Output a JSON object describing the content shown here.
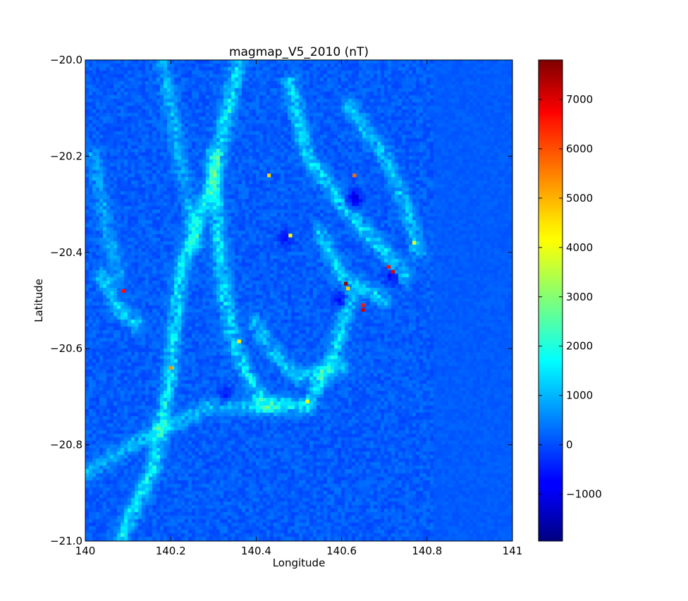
{
  "chart_data": {
    "type": "heatmap",
    "title": "magmap_V5_2010 (nT)",
    "xlabel": "Longitude",
    "ylabel": "Latitude",
    "xlim": [
      140.0,
      141.0
    ],
    "ylim": [
      -21.0,
      -20.0
    ],
    "xticks": [
      140.0,
      140.2,
      140.4,
      140.6,
      140.8,
      141.0
    ],
    "xtick_labels": [
      "140",
      "140.2",
      "140.4",
      "140.6",
      "140.8",
      "141"
    ],
    "yticks": [
      -20.0,
      -20.2,
      -20.4,
      -20.6,
      -20.8,
      -21.0
    ],
    "ytick_labels": [
      "−20.0",
      "−20.2",
      "−20.4",
      "−20.6",
      "−20.8",
      "−21.0"
    ],
    "colormap": "jet",
    "grid": false,
    "background_value_nT": 150,
    "colorbar": {
      "vmin": -1950,
      "vmax": 7800,
      "ticks": [
        -1000,
        0,
        1000,
        2000,
        3000,
        4000,
        5000,
        6000,
        7000
      ],
      "tick_labels": [
        "−1000",
        "0",
        "1000",
        "2000",
        "3000",
        "4000",
        "5000",
        "6000",
        "7000"
      ]
    },
    "hotspots": [
      {
        "lon": 140.09,
        "lat": -20.48,
        "value": 6500
      },
      {
        "lon": 140.2,
        "lat": -20.64,
        "value": 5200
      },
      {
        "lon": 140.43,
        "lat": -20.24,
        "value": 4600
      },
      {
        "lon": 140.48,
        "lat": -20.365,
        "value": 4100
      },
      {
        "lon": 140.63,
        "lat": -20.24,
        "value": 5600
      },
      {
        "lon": 140.61,
        "lat": -20.465,
        "value": 7600
      },
      {
        "lon": 140.615,
        "lat": -20.475,
        "value": 4600
      },
      {
        "lon": 140.65,
        "lat": -20.51,
        "value": 6400
      },
      {
        "lon": 140.65,
        "lat": -20.52,
        "value": 7000
      },
      {
        "lon": 140.71,
        "lat": -20.43,
        "value": 6400
      },
      {
        "lon": 140.72,
        "lat": -20.44,
        "value": 6800
      },
      {
        "lon": 140.36,
        "lat": -20.585,
        "value": 4300
      },
      {
        "lon": 140.52,
        "lat": -20.71,
        "value": 4100
      },
      {
        "lon": 140.77,
        "lat": -20.38,
        "value": 3700
      }
    ],
    "ridges": [
      {
        "points": [
          [
            140.36,
            -20.0
          ],
          [
            140.3,
            -20.25
          ],
          [
            140.22,
            -20.45
          ],
          [
            140.2,
            -20.65
          ],
          [
            140.16,
            -20.85
          ],
          [
            140.08,
            -21.0
          ]
        ],
        "value": 1500
      },
      {
        "points": [
          [
            140.3,
            -20.2
          ],
          [
            140.32,
            -20.45
          ],
          [
            140.35,
            -20.6
          ],
          [
            140.42,
            -20.72
          ],
          [
            140.52,
            -20.72
          ],
          [
            140.58,
            -20.62
          ],
          [
            140.62,
            -20.5
          ]
        ],
        "value": 1400
      },
      {
        "points": [
          [
            140.48,
            -20.05
          ],
          [
            140.52,
            -20.2
          ],
          [
            140.6,
            -20.3
          ],
          [
            140.7,
            -20.4
          ],
          [
            140.75,
            -20.45
          ]
        ],
        "value": 1300
      },
      {
        "points": [
          [
            140.62,
            -20.1
          ],
          [
            140.7,
            -20.2
          ],
          [
            140.75,
            -20.3
          ],
          [
            140.78,
            -20.4
          ]
        ],
        "value": 1100
      },
      {
        "points": [
          [
            140.0,
            -20.86
          ],
          [
            140.15,
            -20.78
          ],
          [
            140.3,
            -20.72
          ],
          [
            140.45,
            -20.72
          ]
        ],
        "value": 1000
      },
      {
        "points": [
          [
            140.04,
            -20.45
          ],
          [
            140.08,
            -20.52
          ],
          [
            140.12,
            -20.55
          ]
        ],
        "value": 1200
      },
      {
        "points": [
          [
            140.55,
            -20.36
          ],
          [
            140.6,
            -20.45
          ],
          [
            140.66,
            -20.48
          ],
          [
            140.7,
            -20.5
          ]
        ],
        "value": 1200
      },
      {
        "points": [
          [
            140.18,
            -20.0
          ],
          [
            140.22,
            -20.2
          ],
          [
            140.26,
            -20.38
          ]
        ],
        "value": 900
      },
      {
        "points": [
          [
            140.4,
            -20.55
          ],
          [
            140.45,
            -20.62
          ],
          [
            140.5,
            -20.66
          ],
          [
            140.6,
            -20.64
          ]
        ],
        "value": 1100
      },
      {
        "points": [
          [
            140.02,
            -20.2
          ],
          [
            140.05,
            -20.35
          ],
          [
            140.08,
            -20.45
          ]
        ],
        "value": 800
      }
    ],
    "lows": [
      {
        "lon": 140.63,
        "lat": -20.29,
        "value": -1200
      },
      {
        "lon": 140.72,
        "lat": -20.45,
        "value": -900
      },
      {
        "lon": 140.33,
        "lat": -20.7,
        "value": -800
      },
      {
        "lon": 140.47,
        "lat": -20.37,
        "value": -700
      },
      {
        "lon": 140.6,
        "lat": -20.5,
        "value": -900
      }
    ]
  }
}
